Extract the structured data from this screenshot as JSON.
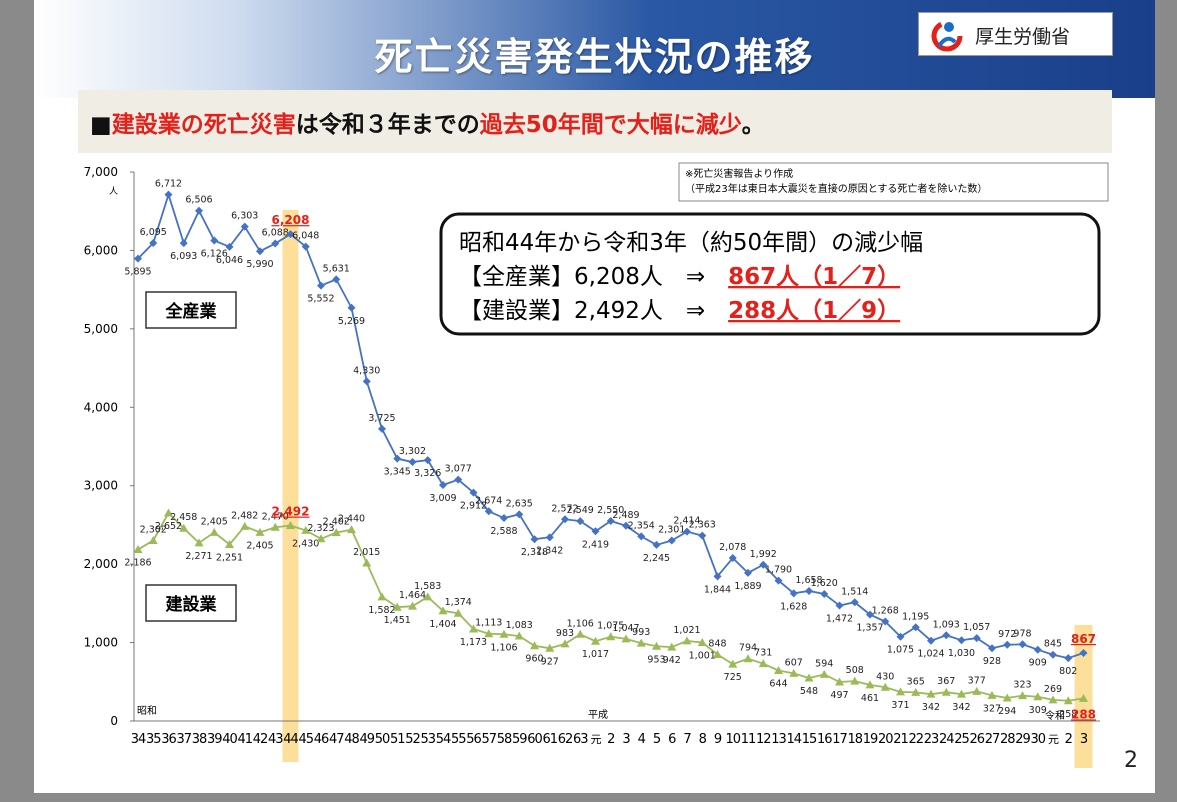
{
  "header": {
    "title": "死亡災害発生状況の推移",
    "ministry": "厚生労働省",
    "brand_color": "#1a3f8a"
  },
  "subtitle": {
    "bullet": "■",
    "part1": "建設業の死亡災害",
    "part2": "は令和３年までの",
    "part3": "過去50年間で大幅に減少",
    "part4": "。"
  },
  "note": {
    "line1": "※死亡災害報告より作成",
    "line2": "（平成23年は東日本大震災を直接の原因とする死亡者を除いた数）"
  },
  "callout": {
    "line1": "昭和44年から令和3年（約50年間）の減少幅",
    "line2_prefix": "【全産業】6,208人　⇒　",
    "line2_highlight": "867人（1／7）",
    "line3_prefix": "【建設業】2,492人　⇒　",
    "line3_highlight": "288人（1／9）"
  },
  "page_number": "2",
  "chart_data": {
    "type": "line",
    "y_unit": "人",
    "ylim": [
      0,
      7000
    ],
    "yticks": [
      "0",
      "1,000",
      "2,000",
      "3,000",
      "4,000",
      "5,000",
      "6,000",
      "7,000"
    ],
    "era_labels": [
      "昭和",
      "平成",
      "令和"
    ],
    "x_labels": [
      "34",
      "35",
      "36",
      "37",
      "38",
      "39",
      "40",
      "41",
      "42",
      "43",
      "44",
      "45",
      "46",
      "47",
      "48",
      "49",
      "50",
      "51",
      "52",
      "53",
      "54",
      "55",
      "56",
      "57",
      "58",
      "59",
      "60",
      "61",
      "62",
      "63",
      "元",
      "2",
      "3",
      "4",
      "5",
      "6",
      "7",
      "8",
      "9",
      "10",
      "11",
      "12",
      "13",
      "14",
      "15",
      "16",
      "17",
      "18",
      "19",
      "20",
      "21",
      "22",
      "23",
      "24",
      "25",
      "26",
      "27",
      "28",
      "29",
      "30",
      "元",
      "2",
      "3"
    ],
    "highlight_labels": [
      "44",
      "3"
    ],
    "series": [
      {
        "name": "全産業",
        "color": "#4472c4",
        "marker": "diamond",
        "values": [
          5895,
          6095,
          6712,
          6093,
          6506,
          6126,
          6046,
          6303,
          5990,
          6088,
          6208,
          6048,
          5552,
          5631,
          5269,
          4330,
          3725,
          3345,
          3302,
          3326,
          3009,
          3077,
          2912,
          2674,
          2588,
          2635,
          2318,
          2342,
          2572,
          2549,
          2419,
          2550,
          2489,
          2354,
          2245,
          2301,
          2414,
          2363,
          1844,
          2078,
          1889,
          1992,
          1790,
          1628,
          1658,
          1620,
          1472,
          1514,
          1357,
          1268,
          1075,
          1195,
          1024,
          1093,
          1030,
          1057,
          928,
          972,
          978,
          909,
          845,
          802,
          867
        ],
        "labels": [
          "5,895",
          "6,095",
          "6,712",
          "6,093",
          "6,506",
          "6,126",
          "6,046",
          "6,303",
          "5,990",
          "6,088",
          "6,208",
          "6,048",
          "5,552",
          "5,631",
          "5,269",
          "4,330",
          "3,725",
          "3,345",
          "3,302",
          "3,326",
          "3,009",
          "3,077",
          "2,912",
          "2,674",
          "2,588",
          "2,635",
          "2,318",
          "2,342",
          "2,572",
          "2,549",
          "2,419",
          "2,550",
          "2,489",
          "2,354",
          "2,245",
          "2,301",
          "2,414",
          "2,363",
          "1,844",
          "2,078",
          "1,889",
          "1,992",
          "1,790",
          "1,628",
          "1,658",
          "1,620",
          "1,472",
          "1,514",
          "1,357",
          "1,268",
          "1,075",
          "1,195",
          "1,024",
          "1,093",
          "1,030",
          "1,057",
          "928",
          "972",
          "978",
          "909",
          "845",
          "802",
          "867"
        ]
      },
      {
        "name": "建設業",
        "color": "#9bbb59",
        "marker": "triangle",
        "values": [
          2186,
          2302,
          2652,
          2458,
          2271,
          2405,
          2251,
          2482,
          2405,
          2470,
          2492,
          2430,
          2323,
          2402,
          2440,
          2015,
          1582,
          1451,
          1464,
          1583,
          1404,
          1374,
          1173,
          1113,
          1106,
          1083,
          960,
          927,
          983,
          1106,
          1017,
          1075,
          1047,
          993,
          953,
          942,
          1021,
          1001,
          848,
          725,
          794,
          731,
          644,
          607,
          548,
          594,
          497,
          508,
          461,
          430,
          371,
          365,
          342,
          367,
          342,
          377,
          327,
          294,
          323,
          309,
          269,
          258,
          288
        ],
        "labels": [
          "2,186",
          "2,302",
          "2,652",
          "2,458",
          "2,271",
          "2,405",
          "2,251",
          "2,482",
          "2,405",
          "2,470",
          "2,492",
          "2,430",
          "2,323",
          "2,402",
          "2,440",
          "2,015",
          "1,582",
          "1,451",
          "1,464",
          "1,583",
          "1,404",
          "1,374",
          "1,173",
          "1,113",
          "1,106",
          "1,083",
          "960",
          "927",
          "983",
          "1,106",
          "1,017",
          "1,075",
          "1,047",
          "993",
          "953",
          "942",
          "1,021",
          "1,001",
          "848",
          "725",
          "794",
          "731",
          "644",
          "607",
          "548",
          "594",
          "497",
          "508",
          "461",
          "430",
          "371",
          "365",
          "342",
          "367",
          "342",
          "377",
          "327",
          "294",
          "323",
          "309",
          "269",
          "258",
          "288"
        ]
      }
    ]
  }
}
